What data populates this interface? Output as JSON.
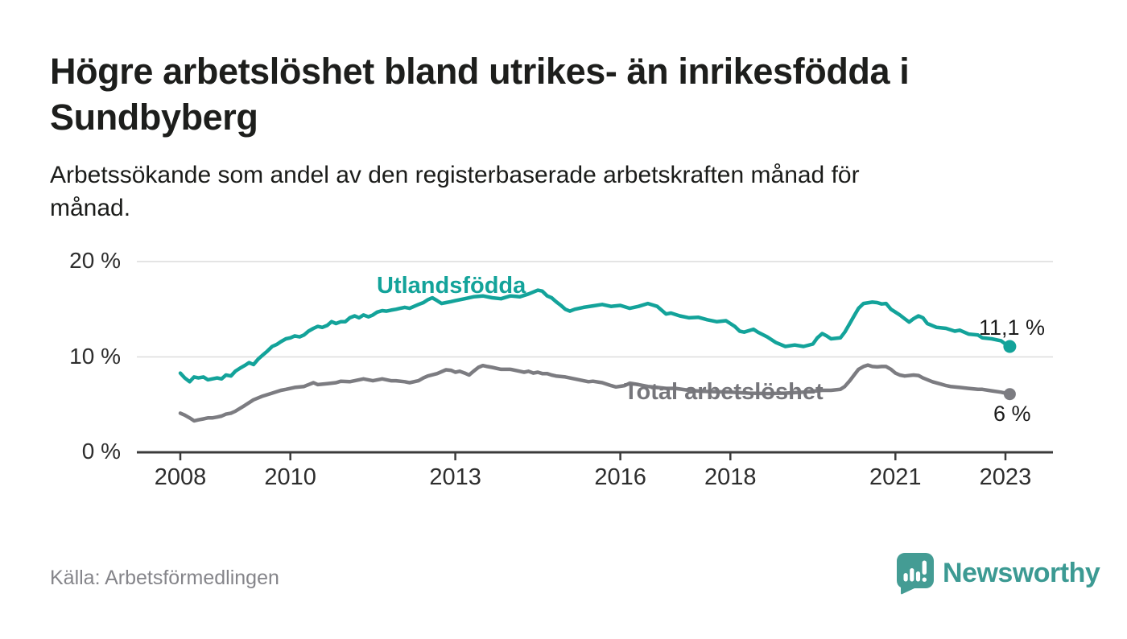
{
  "header": {
    "title_lines": [
      "Högre arbetslöshet bland utrikes- än inrikesfödda i",
      "Sundbyberg"
    ],
    "subtitle_lines": [
      "Arbetssökande som andel av den registerbaserade arbetskraften månad för",
      "månad."
    ]
  },
  "chart_data": {
    "type": "line",
    "unit": "%",
    "ylim": [
      0,
      20
    ],
    "xlim": [
      2007.2,
      2023.9
    ],
    "grid": "horizontal",
    "legend_position": "inline-labels",
    "y_ticks": [
      {
        "value": 0,
        "label": "0 %"
      },
      {
        "value": 10,
        "label": "10 %"
      },
      {
        "value": 20,
        "label": "20 %"
      }
    ],
    "x_ticks": [
      {
        "value": 2008,
        "label": "2008"
      },
      {
        "value": 2010,
        "label": "2010"
      },
      {
        "value": 2013,
        "label": "2013"
      },
      {
        "value": 2016,
        "label": "2016"
      },
      {
        "value": 2018,
        "label": "2018"
      },
      {
        "value": 2021,
        "label": "2021"
      },
      {
        "value": 2023,
        "label": "2023"
      }
    ],
    "series": [
      {
        "name": "Utlandsfödda",
        "color": "#13a39a",
        "end_label": "11,1 %",
        "end_value": 11.1,
        "points": [
          [
            2008.0,
            8.3
          ],
          [
            2008.08,
            7.8
          ],
          [
            2008.17,
            7.4
          ],
          [
            2008.25,
            7.9
          ],
          [
            2008.33,
            7.8
          ],
          [
            2008.42,
            7.9
          ],
          [
            2008.5,
            7.6
          ],
          [
            2008.58,
            7.7
          ],
          [
            2008.67,
            7.8
          ],
          [
            2008.75,
            7.7
          ],
          [
            2008.83,
            8.1
          ],
          [
            2008.92,
            8.0
          ],
          [
            2009.0,
            8.5
          ],
          [
            2009.08,
            8.8
          ],
          [
            2009.17,
            9.1
          ],
          [
            2009.25,
            9.4
          ],
          [
            2009.33,
            9.2
          ],
          [
            2009.42,
            9.8
          ],
          [
            2009.5,
            10.2
          ],
          [
            2009.58,
            10.6
          ],
          [
            2009.67,
            11.1
          ],
          [
            2009.75,
            11.3
          ],
          [
            2009.83,
            11.6
          ],
          [
            2009.92,
            11.9
          ],
          [
            2010.0,
            12.0
          ],
          [
            2010.08,
            12.2
          ],
          [
            2010.17,
            12.1
          ],
          [
            2010.25,
            12.3
          ],
          [
            2010.33,
            12.7
          ],
          [
            2010.42,
            13.0
          ],
          [
            2010.5,
            13.2
          ],
          [
            2010.58,
            13.1
          ],
          [
            2010.67,
            13.3
          ],
          [
            2010.75,
            13.7
          ],
          [
            2010.83,
            13.5
          ],
          [
            2010.92,
            13.7
          ],
          [
            2011.0,
            13.7
          ],
          [
            2011.08,
            14.1
          ],
          [
            2011.17,
            14.3
          ],
          [
            2011.25,
            14.1
          ],
          [
            2011.33,
            14.4
          ],
          [
            2011.42,
            14.2
          ],
          [
            2011.5,
            14.4
          ],
          [
            2011.58,
            14.7
          ],
          [
            2011.67,
            14.85
          ],
          [
            2011.75,
            14.8
          ],
          [
            2011.83,
            14.9
          ],
          [
            2011.92,
            15.0
          ],
          [
            2012.0,
            15.1
          ],
          [
            2012.08,
            15.2
          ],
          [
            2012.17,
            15.1
          ],
          [
            2012.25,
            15.3
          ],
          [
            2012.33,
            15.5
          ],
          [
            2012.42,
            15.7
          ],
          [
            2012.5,
            16.0
          ],
          [
            2012.58,
            16.2
          ],
          [
            2012.67,
            15.9
          ],
          [
            2012.75,
            15.6
          ],
          [
            2012.83,
            15.7
          ],
          [
            2012.92,
            15.8
          ],
          [
            2013.0,
            15.9
          ],
          [
            2013.17,
            16.1
          ],
          [
            2013.33,
            16.3
          ],
          [
            2013.5,
            16.4
          ],
          [
            2013.67,
            16.2
          ],
          [
            2013.83,
            16.1
          ],
          [
            2014.0,
            16.4
          ],
          [
            2014.17,
            16.3
          ],
          [
            2014.33,
            16.6
          ],
          [
            2014.5,
            17.0
          ],
          [
            2014.58,
            16.9
          ],
          [
            2014.67,
            16.4
          ],
          [
            2014.75,
            16.2
          ],
          [
            2014.83,
            15.8
          ],
          [
            2014.92,
            15.4
          ],
          [
            2015.0,
            15.0
          ],
          [
            2015.08,
            14.8
          ],
          [
            2015.17,
            15.0
          ],
          [
            2015.33,
            15.2
          ],
          [
            2015.5,
            15.35
          ],
          [
            2015.67,
            15.5
          ],
          [
            2015.83,
            15.3
          ],
          [
            2016.0,
            15.4
          ],
          [
            2016.17,
            15.1
          ],
          [
            2016.33,
            15.3
          ],
          [
            2016.5,
            15.6
          ],
          [
            2016.67,
            15.3
          ],
          [
            2016.83,
            14.5
          ],
          [
            2016.92,
            14.6
          ],
          [
            2017.08,
            14.3
          ],
          [
            2017.25,
            14.1
          ],
          [
            2017.42,
            14.15
          ],
          [
            2017.58,
            13.9
          ],
          [
            2017.75,
            13.7
          ],
          [
            2017.92,
            13.8
          ],
          [
            2018.08,
            13.2
          ],
          [
            2018.17,
            12.7
          ],
          [
            2018.25,
            12.6
          ],
          [
            2018.42,
            12.9
          ],
          [
            2018.5,
            12.6
          ],
          [
            2018.67,
            12.1
          ],
          [
            2018.83,
            11.5
          ],
          [
            2019.0,
            11.1
          ],
          [
            2019.17,
            11.25
          ],
          [
            2019.33,
            11.1
          ],
          [
            2019.5,
            11.35
          ],
          [
            2019.58,
            12.0
          ],
          [
            2019.67,
            12.45
          ],
          [
            2019.75,
            12.2
          ],
          [
            2019.83,
            11.9
          ],
          [
            2020.0,
            12.0
          ],
          [
            2020.08,
            12.6
          ],
          [
            2020.17,
            13.5
          ],
          [
            2020.25,
            14.3
          ],
          [
            2020.33,
            15.1
          ],
          [
            2020.42,
            15.6
          ],
          [
            2020.58,
            15.75
          ],
          [
            2020.67,
            15.7
          ],
          [
            2020.75,
            15.55
          ],
          [
            2020.83,
            15.6
          ],
          [
            2020.92,
            15.0
          ],
          [
            2021.0,
            14.7
          ],
          [
            2021.08,
            14.4
          ],
          [
            2021.17,
            14.0
          ],
          [
            2021.25,
            13.65
          ],
          [
            2021.33,
            14.0
          ],
          [
            2021.42,
            14.3
          ],
          [
            2021.5,
            14.1
          ],
          [
            2021.58,
            13.5
          ],
          [
            2021.75,
            13.1
          ],
          [
            2021.92,
            13.0
          ],
          [
            2022.08,
            12.7
          ],
          [
            2022.17,
            12.8
          ],
          [
            2022.33,
            12.4
          ],
          [
            2022.5,
            12.3
          ],
          [
            2022.58,
            12.0
          ],
          [
            2022.75,
            11.9
          ],
          [
            2022.92,
            11.7
          ],
          [
            2023.0,
            11.35
          ],
          [
            2023.08,
            11.1
          ]
        ]
      },
      {
        "name": "Total arbetslöshet",
        "color": "#7c7c81",
        "end_label": "6 %",
        "end_value": 6.1,
        "points": [
          [
            2008.0,
            4.1
          ],
          [
            2008.08,
            3.9
          ],
          [
            2008.17,
            3.6
          ],
          [
            2008.25,
            3.3
          ],
          [
            2008.33,
            3.4
          ],
          [
            2008.42,
            3.5
          ],
          [
            2008.5,
            3.6
          ],
          [
            2008.58,
            3.6
          ],
          [
            2008.67,
            3.7
          ],
          [
            2008.75,
            3.8
          ],
          [
            2008.83,
            4.0
          ],
          [
            2008.92,
            4.1
          ],
          [
            2009.0,
            4.3
          ],
          [
            2009.17,
            4.9
          ],
          [
            2009.33,
            5.5
          ],
          [
            2009.5,
            5.9
          ],
          [
            2009.67,
            6.2
          ],
          [
            2009.83,
            6.5
          ],
          [
            2009.92,
            6.6
          ],
          [
            2010.08,
            6.8
          ],
          [
            2010.25,
            6.9
          ],
          [
            2010.42,
            7.3
          ],
          [
            2010.5,
            7.1
          ],
          [
            2010.67,
            7.2
          ],
          [
            2010.83,
            7.3
          ],
          [
            2010.92,
            7.45
          ],
          [
            2011.08,
            7.4
          ],
          [
            2011.17,
            7.5
          ],
          [
            2011.33,
            7.7
          ],
          [
            2011.5,
            7.5
          ],
          [
            2011.67,
            7.7
          ],
          [
            2011.83,
            7.5
          ],
          [
            2011.92,
            7.5
          ],
          [
            2012.08,
            7.4
          ],
          [
            2012.17,
            7.3
          ],
          [
            2012.33,
            7.5
          ],
          [
            2012.42,
            7.8
          ],
          [
            2012.5,
            8.0
          ],
          [
            2012.67,
            8.25
          ],
          [
            2012.83,
            8.65
          ],
          [
            2012.92,
            8.6
          ],
          [
            2013.0,
            8.4
          ],
          [
            2013.08,
            8.5
          ],
          [
            2013.17,
            8.3
          ],
          [
            2013.25,
            8.1
          ],
          [
            2013.33,
            8.5
          ],
          [
            2013.42,
            8.9
          ],
          [
            2013.5,
            9.1
          ],
          [
            2013.58,
            9.0
          ],
          [
            2013.67,
            8.9
          ],
          [
            2013.83,
            8.7
          ],
          [
            2014.0,
            8.7
          ],
          [
            2014.17,
            8.5
          ],
          [
            2014.25,
            8.4
          ],
          [
            2014.33,
            8.5
          ],
          [
            2014.42,
            8.3
          ],
          [
            2014.5,
            8.4
          ],
          [
            2014.58,
            8.25
          ],
          [
            2014.67,
            8.25
          ],
          [
            2014.75,
            8.1
          ],
          [
            2014.83,
            8.0
          ],
          [
            2015.0,
            7.9
          ],
          [
            2015.17,
            7.7
          ],
          [
            2015.33,
            7.5
          ],
          [
            2015.42,
            7.4
          ],
          [
            2015.5,
            7.45
          ],
          [
            2015.67,
            7.3
          ],
          [
            2015.83,
            7.0
          ],
          [
            2015.92,
            6.85
          ],
          [
            2016.08,
            7.0
          ],
          [
            2016.17,
            7.25
          ],
          [
            2016.33,
            7.1
          ],
          [
            2016.5,
            6.9
          ],
          [
            2016.67,
            6.8
          ],
          [
            2016.83,
            6.7
          ],
          [
            2017.0,
            6.7
          ],
          [
            2017.25,
            6.5
          ],
          [
            2017.5,
            6.4
          ],
          [
            2017.75,
            6.35
          ],
          [
            2018.0,
            6.3
          ],
          [
            2018.33,
            6.2
          ],
          [
            2018.67,
            6.15
          ],
          [
            2019.0,
            6.2
          ],
          [
            2019.33,
            6.3
          ],
          [
            2019.67,
            6.5
          ],
          [
            2019.83,
            6.5
          ],
          [
            2020.0,
            6.6
          ],
          [
            2020.08,
            6.9
          ],
          [
            2020.17,
            7.5
          ],
          [
            2020.25,
            8.1
          ],
          [
            2020.33,
            8.7
          ],
          [
            2020.42,
            9.0
          ],
          [
            2020.5,
            9.15
          ],
          [
            2020.58,
            9.0
          ],
          [
            2020.67,
            8.95
          ],
          [
            2020.75,
            9.0
          ],
          [
            2020.83,
            9.0
          ],
          [
            2020.92,
            8.7
          ],
          [
            2021.0,
            8.3
          ],
          [
            2021.08,
            8.1
          ],
          [
            2021.17,
            8.0
          ],
          [
            2021.33,
            8.1
          ],
          [
            2021.42,
            8.05
          ],
          [
            2021.5,
            7.8
          ],
          [
            2021.67,
            7.4
          ],
          [
            2021.83,
            7.15
          ],
          [
            2021.92,
            7.0
          ],
          [
            2022.0,
            6.9
          ],
          [
            2022.17,
            6.8
          ],
          [
            2022.33,
            6.7
          ],
          [
            2022.5,
            6.6
          ],
          [
            2022.58,
            6.6
          ],
          [
            2022.75,
            6.45
          ],
          [
            2022.92,
            6.3
          ],
          [
            2023.0,
            6.2
          ],
          [
            2023.08,
            6.1
          ]
        ]
      }
    ]
  },
  "footer": {
    "source": "Källa: Arbetsförmedlingen",
    "brand": "Newsworthy"
  },
  "colors": {
    "accent_teal": "#13a39a",
    "series_gray": "#7c7c81",
    "brand_teal": "#3c9a93",
    "axis_dark": "#3b3b3b",
    "gridline": "#dcdcdc"
  }
}
